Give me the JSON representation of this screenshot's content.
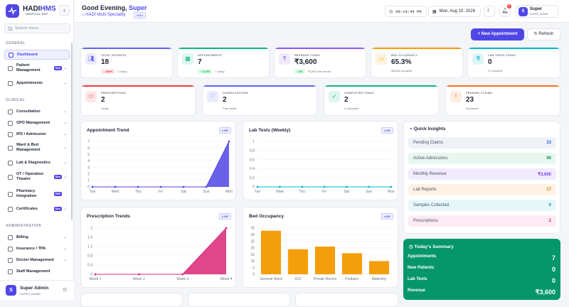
{
  "brand": {
    "name_a": "HADI",
    "name_b": "HMS",
    "subtitle": "HOSPITAL ERP"
  },
  "search": {
    "placeholder": "Search menu..."
  },
  "sidebar": {
    "general_label": "GENERAL",
    "clinical_label": "CLINICAL",
    "admin_label": "ADMINISTRATION",
    "items": [
      {
        "label": "Dashboard"
      },
      {
        "label": "Patient Management",
        "badge": "New"
      },
      {
        "label": "Appointments"
      },
      {
        "label": "Consultation"
      },
      {
        "label": "OPD Management"
      },
      {
        "label": "IPD / Admission"
      },
      {
        "label": "Ward & Bed Management"
      },
      {
        "label": "Lab & Diagnostics"
      },
      {
        "label": "OT / Operation Theatre",
        "badge": "New"
      },
      {
        "label": "Pharmacy Integration",
        "badge": "ERP"
      },
      {
        "label": "Certificates",
        "badge": "New"
      },
      {
        "label": "Billing"
      },
      {
        "label": "Insurance / TPA"
      },
      {
        "label": "Doctor Management"
      },
      {
        "label": "Staff Management"
      }
    ]
  },
  "user": {
    "name": "Super Admin",
    "role": "SUPER_ADMIN",
    "initial": "S"
  },
  "header": {
    "greeting": "Good Evening, ",
    "greeting_name": "Super",
    "hospital": "HADI Multi-Speciality",
    "hospital_tag": "HMS",
    "time": "09:19:44 PM",
    "date": "Mon, Aug 10, 2026",
    "notif_count": "5",
    "user_name": "Super",
    "user_role": "SUPER_ADMIN",
    "user_initial": "S"
  },
  "actions": {
    "new_appointment": "+ New Appointment",
    "refresh": "Refresh"
  },
  "kpis": [
    {
      "label": "TOTAL PATIENTS",
      "value": "18",
      "chip": "↓ 100%",
      "sub": "0 today",
      "color": "#6366f1",
      "chip_bg": "#fde8e8",
      "chip_fg": "#dc2626",
      "icon": "users-icon"
    },
    {
      "label": "APPOINTMENTS",
      "value": "7",
      "chip": "↑ 12.5%",
      "sub": "7 today",
      "color": "#10b981",
      "chip_bg": "#dcfce7",
      "chip_fg": "#16a34a",
      "icon": "calendar-icon"
    },
    {
      "label": "REVENUE TODAY",
      "value": "₹3,600",
      "chip": "↑ 0%",
      "sub": "₹3,600 this month",
      "color": "#8b5cf6",
      "chip_bg": "#dcfce7",
      "chip_fg": "#16a34a",
      "icon": "rupee-icon"
    },
    {
      "label": "BED OCCUPANCY",
      "value": "65.3%",
      "chip": "",
      "sub": "98/150 occupied",
      "color": "#f59e0b",
      "icon": "bed-icon"
    },
    {
      "label": "LAB TESTS TODAY",
      "value": "0",
      "chip": "",
      "sub": "17 pending",
      "color": "#06b6d4",
      "icon": "flask-icon"
    },
    {
      "label": "PRESCRIPTIONS",
      "value": "2",
      "chip": "",
      "sub": "Today",
      "color": "#ef4444",
      "icon": "pill-icon"
    },
    {
      "label": "CONSULTATIONS",
      "value": "2",
      "chip": "",
      "sub": "This month",
      "color": "#6366f1",
      "icon": "stethoscope-icon"
    },
    {
      "label": "COMPLETED TODAY",
      "value": "2",
      "chip": "",
      "sub": "0 cancelled",
      "color": "#10b981",
      "icon": "check-icon"
    },
    {
      "label": "PENDING CLAIMS",
      "value": "23",
      "chip": "",
      "sub": "Insurance",
      "color": "#f97316",
      "icon": "alert-icon"
    }
  ],
  "chart_data": [
    {
      "type": "area",
      "title": "Appointment Trend",
      "badge": "LIVE",
      "x": [
        "Tue",
        "Wed",
        "Thu",
        "Fri",
        "Sat",
        "Sun",
        "Mon"
      ],
      "values": [
        0,
        0,
        0,
        0,
        0,
        0,
        7
      ],
      "ylim": [
        0,
        7
      ],
      "color": "#4f46e5"
    },
    {
      "type": "line",
      "title": "Lab Tests (Weekly)",
      "badge": "LIVE",
      "x": [
        "Tue",
        "Wed",
        "Thu",
        "Fri",
        "Sat",
        "Sun",
        "Mon"
      ],
      "values": [
        0,
        0,
        0,
        0,
        0,
        0,
        0
      ],
      "ylim": [
        0,
        1
      ],
      "color": "#06b6d4"
    },
    {
      "type": "area",
      "title": "Prescription Trends",
      "badge": "LIVE",
      "x": [
        "Week 1",
        "Week 2",
        "Week 3",
        "Week 4"
      ],
      "values": [
        0,
        0,
        0,
        2
      ],
      "ylim": [
        0,
        2
      ],
      "color": "#db2777"
    },
    {
      "type": "bar",
      "title": "Bed Occupancy",
      "badge": "LIVE",
      "categories": [
        "General Ward",
        "ICU",
        "Private Rooms",
        "Pediatric",
        "Maternity"
      ],
      "values": [
        33,
        19,
        21,
        16,
        10
      ],
      "ylim": [
        0,
        35
      ],
      "color": "#f59e0b"
    }
  ],
  "quick_insights": {
    "title": "Quick Insights",
    "rows": [
      {
        "label": "Pending Claims",
        "value": "23",
        "bg": "#eef2f7",
        "fg": "#2563eb"
      },
      {
        "label": "Active Admissions",
        "value": "98",
        "bg": "#e7f7ef",
        "fg": "#16a34a"
      },
      {
        "label": "Monthly Revenue",
        "value": "₹3,600",
        "bg": "#f1ebfd",
        "fg": "#7c3aed"
      },
      {
        "label": "Lab Reports",
        "value": "17",
        "bg": "#fdf2e3",
        "fg": "#d97706"
      },
      {
        "label": "Samples Collected",
        "value": "0",
        "bg": "#e6f7fa",
        "fg": "#0891b2"
      },
      {
        "label": "Prescriptions",
        "value": "2",
        "bg": "#fdebf3",
        "fg": "#db2777"
      }
    ]
  },
  "summary": {
    "title": "Today's Summary",
    "rows": [
      {
        "label": "Appointments",
        "value": "7"
      },
      {
        "label": "New Patients",
        "value": "0"
      },
      {
        "label": "Lab Tests",
        "value": "0"
      },
      {
        "label": "Revenue",
        "value": "₹3,600"
      }
    ]
  }
}
